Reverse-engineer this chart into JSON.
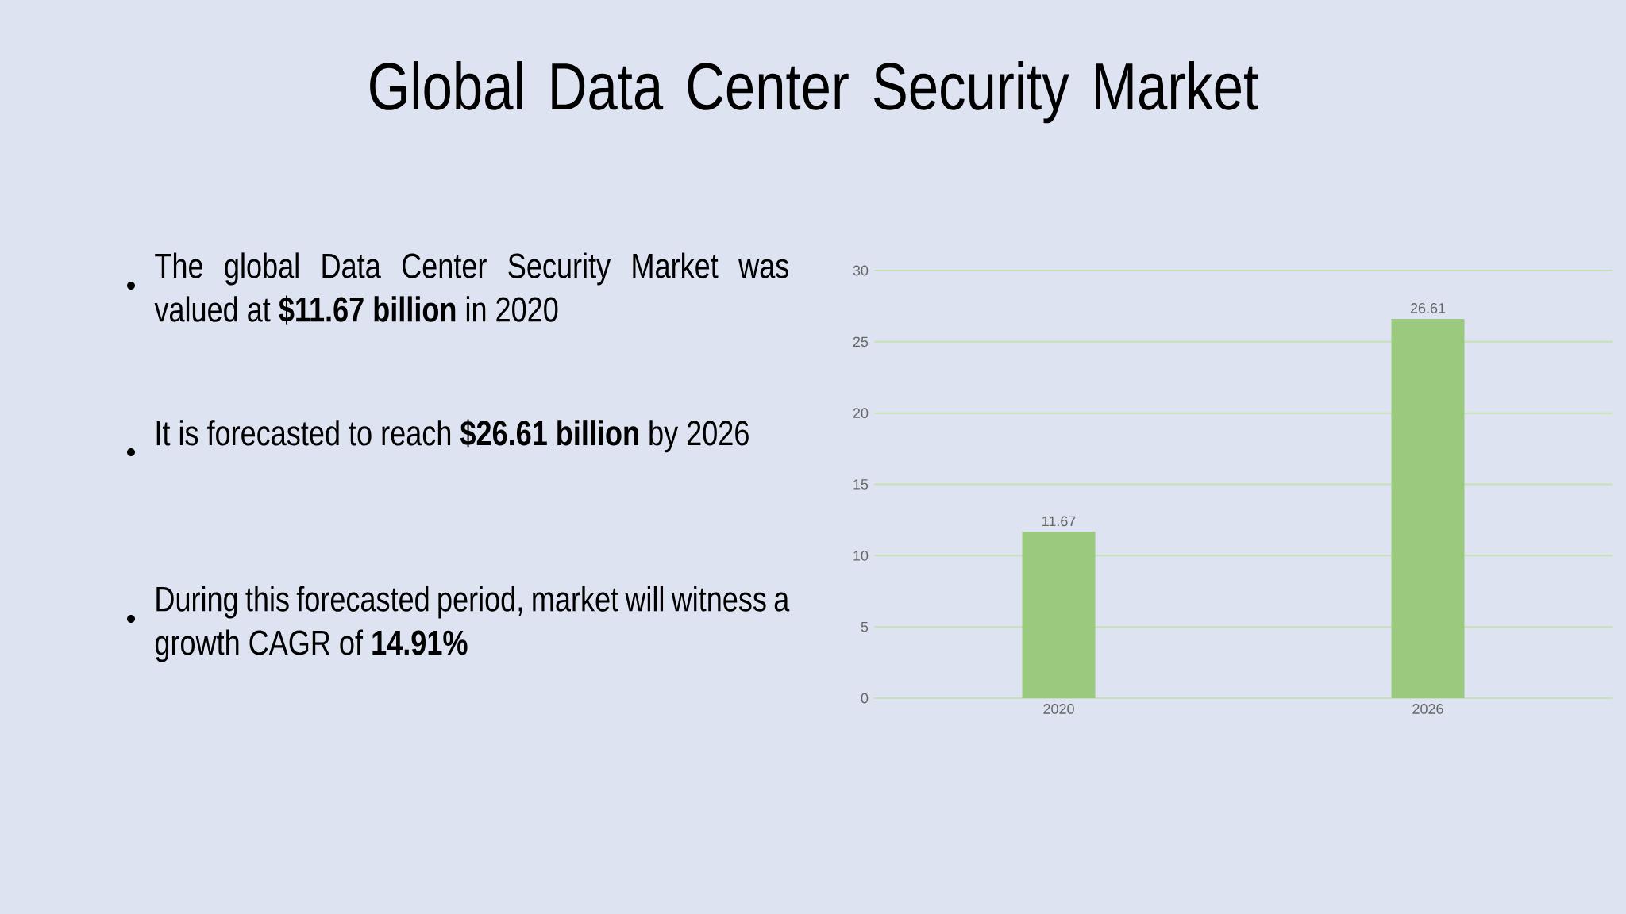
{
  "chart_data": {
    "type": "bar",
    "title": "Global Data Center Security Market",
    "categories": [
      "2020",
      "2026"
    ],
    "values": [
      11.67,
      26.61
    ],
    "color": "#9bca7e",
    "ylim": [
      0,
      30
    ],
    "yticks": [
      0,
      5,
      10,
      15,
      20,
      25,
      30
    ],
    "grid": "y",
    "data_labels": true,
    "annotations": [
      "The global Data Center Security Market was valued at **$11.67 billion** in 2020",
      "It is forecasted to reach **$26.61 billion** by 2026",
      "During this forecasted period, market will witness a growth CAGR of **14.91%**"
    ]
  }
}
